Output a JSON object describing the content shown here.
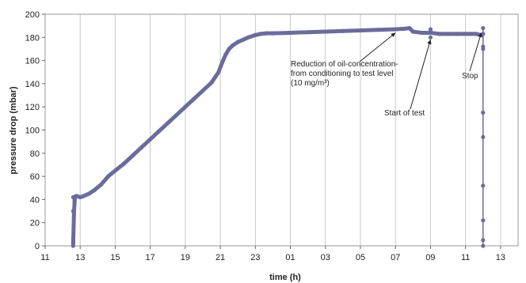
{
  "chart_data": {
    "type": "scatter",
    "title": "",
    "xlabel": "time (h)",
    "ylabel": "pressure drop (mbar)",
    "x_ticks": [
      "11",
      "13",
      "15",
      "17",
      "19",
      "21",
      "23",
      "01",
      "03",
      "05",
      "07",
      "09",
      "11",
      "13"
    ],
    "x_tick_hours": [
      11,
      13,
      15,
      17,
      19,
      21,
      23,
      25,
      27,
      29,
      31,
      33,
      35,
      37
    ],
    "y_ticks": [
      0,
      20,
      40,
      60,
      80,
      100,
      120,
      140,
      160,
      180,
      200
    ],
    "xlim_hours": [
      11,
      38
    ],
    "ylim": [
      0,
      200
    ],
    "grid": "vertical",
    "marker_color": "#6b6b9c",
    "series": [
      {
        "x_hours": [
          12.6,
          12.65,
          12.7,
          12.75,
          12.8,
          13.0,
          13.2,
          13.5,
          13.8,
          14.2,
          14.6,
          15.0,
          15.5,
          16.0,
          16.5,
          17.0,
          17.5,
          18.0,
          18.5,
          19.0,
          19.5,
          20.0,
          20.5,
          20.9,
          21.1,
          21.3,
          21.5,
          21.7,
          22.0,
          22.3,
          22.6,
          23.0,
          23.3,
          23.6,
          24.0,
          25.0,
          26.0,
          27.0,
          28.0,
          29.0,
          30.0,
          31.0,
          31.5,
          31.8,
          32.0,
          32.5,
          33.0,
          33.5,
          34.0,
          34.5,
          35.0,
          35.3,
          35.6,
          35.9,
          36.0
        ],
        "y": [
          2,
          30,
          42,
          43,
          43,
          42,
          43,
          45,
          48,
          53,
          60,
          65,
          71,
          78,
          85,
          92,
          99,
          106,
          113,
          120,
          127,
          134,
          141,
          150,
          158,
          165,
          170,
          173,
          176,
          178,
          180,
          182,
          183,
          183.5,
          183.5,
          184,
          184.5,
          185,
          185.5,
          186,
          186.5,
          187,
          187.5,
          188,
          185,
          184,
          184,
          183,
          183,
          183,
          183,
          183,
          183,
          182,
          183
        ]
      },
      {
        "x_hours": [
          12.6,
          12.6,
          12.6,
          12.6,
          12.6,
          33.0,
          33.0,
          33.0,
          36.0,
          36.0,
          36.0,
          36.0,
          36.0,
          36.0,
          36.0,
          36.0,
          36.0
        ],
        "y": [
          0,
          3,
          6,
          30,
          42,
          180,
          185,
          187,
          188,
          170,
          172,
          115,
          94,
          52,
          22,
          5,
          0
        ]
      }
    ],
    "annotations": [
      {
        "lines": [
          "Reduction of oil-concentration-",
          "from conditioning to test level",
          "(10 mg/m³)"
        ],
        "target": [
          31.0,
          186
        ]
      },
      {
        "lines": [
          "Start of test"
        ],
        "target": [
          33.0,
          180
        ]
      },
      {
        "lines": [
          "Stop"
        ],
        "target": [
          35.9,
          186
        ]
      }
    ]
  }
}
